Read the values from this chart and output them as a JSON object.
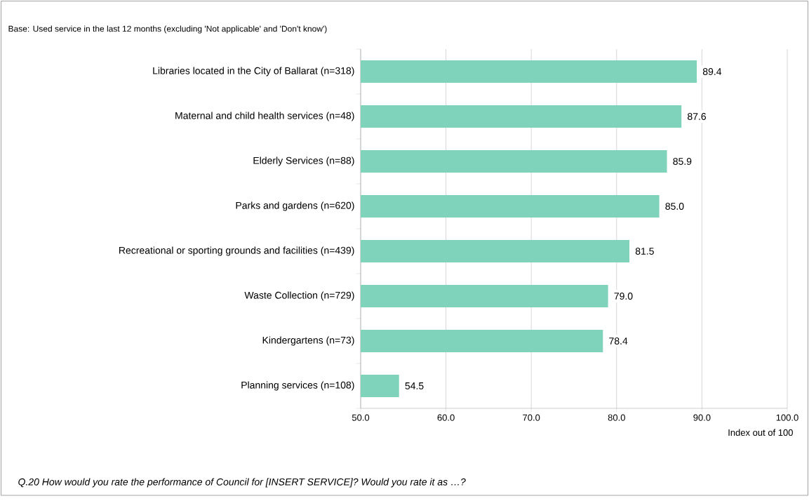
{
  "chart_data": {
    "type": "bar",
    "orientation": "horizontal",
    "xlabel": "Index out of 100",
    "categories": [
      "Libraries located in the City of Ballarat (n=318)",
      "Maternal and child health services (n=48)",
      "Elderly Services (n=88)",
      "Parks and gardens (n=620)",
      "Recreational or sporting grounds and facilities (n=439)",
      "Waste Collection (n=729)",
      "Kindergartens (n=73)",
      "Planning services (n=108)"
    ],
    "values": [
      89.4,
      87.6,
      85.9,
      85.0,
      81.5,
      79.0,
      78.4,
      54.5
    ],
    "value_labels": [
      "89.4",
      "87.6",
      "85.9",
      "85.0",
      "81.5",
      "79.0",
      "78.4",
      "54.5"
    ],
    "color": "#80d3bb",
    "xlim": [
      50,
      100
    ],
    "xticks": [
      {
        "value": 50,
        "label": "50.0"
      },
      {
        "value": 60,
        "label": "60.0"
      },
      {
        "value": 70,
        "label": "70.0"
      },
      {
        "value": 80,
        "label": "80.0"
      },
      {
        "value": 90,
        "label": "90.0"
      },
      {
        "value": 100,
        "label": "100.0"
      }
    ],
    "grid": "x",
    "annotations": [
      "Base: Used service in the last 12 months (excluding 'Not applicable' and 'Don't know')",
      "Q.20 How would you rate the performance of Council for [INSERT SERVICE]?  Would you rate it as …?"
    ]
  }
}
